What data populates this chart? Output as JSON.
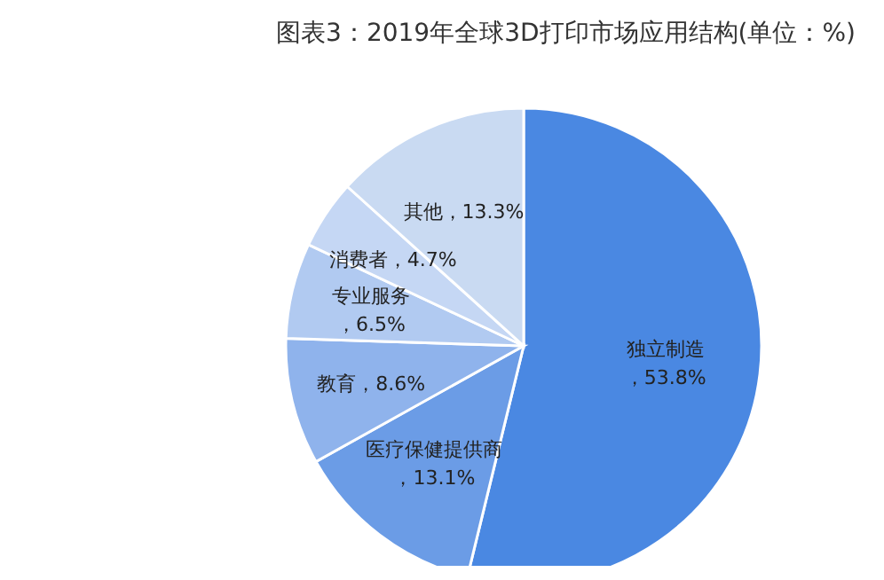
{
  "chart_data": {
    "type": "pie",
    "title": "图表3：2019年全球3D打印市场应用结构(单位：%)",
    "categories": [
      "独立制造",
      "医疗保健提供商",
      "教育",
      "专业服务",
      "消费者",
      "其他"
    ],
    "values": [
      53.8,
      13.1,
      8.6,
      6.5,
      4.7,
      13.3
    ],
    "colors": [
      "#4a88e2",
      "#6b9ce6",
      "#8fb3ec",
      "#b1caf1",
      "#c5d7f4",
      "#c9daf2"
    ],
    "value_labels": [
      "，53.8%",
      "，13.1%",
      "，8.6%",
      "，6.5%",
      "，4.7%",
      "，13.3%"
    ]
  }
}
